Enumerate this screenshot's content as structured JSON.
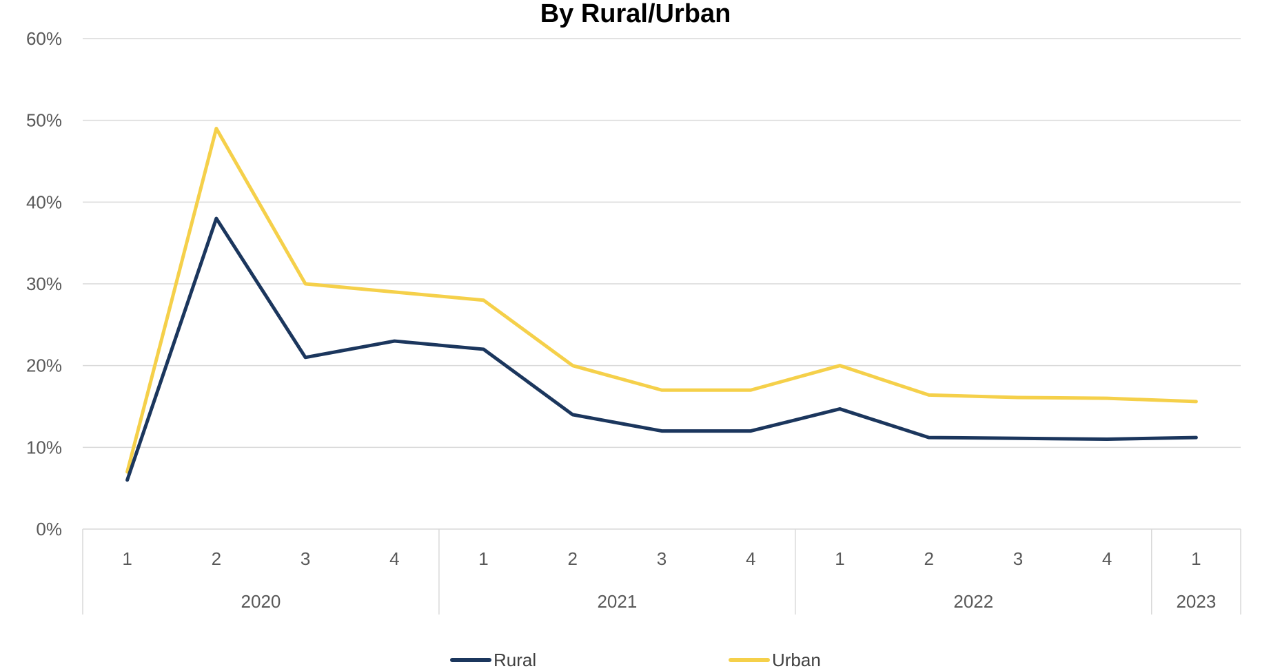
{
  "chart_data": {
    "type": "line",
    "title": "By Rural/Urban",
    "xlabel": "",
    "ylabel": "",
    "ylim": [
      0,
      0.6
    ],
    "yticks": [
      0,
      0.1,
      0.2,
      0.3,
      0.4,
      0.5,
      0.6
    ],
    "ytick_labels": [
      "0%",
      "10%",
      "20%",
      "30%",
      "40%",
      "50%",
      "60%"
    ],
    "categories": [
      "1",
      "2",
      "3",
      "4",
      "1",
      "2",
      "3",
      "4",
      "1",
      "2",
      "3",
      "4",
      "1"
    ],
    "groups": [
      {
        "label": "2020",
        "count": 4
      },
      {
        "label": "2021",
        "count": 4
      },
      {
        "label": "2022",
        "count": 4
      },
      {
        "label": "2023",
        "count": 1
      }
    ],
    "series": [
      {
        "name": "Rural",
        "color": "#1b365d",
        "values": [
          0.06,
          0.38,
          0.21,
          0.23,
          0.22,
          0.14,
          0.12,
          0.12,
          0.147,
          0.112,
          0.111,
          0.11,
          0.112
        ]
      },
      {
        "name": "Urban",
        "color": "#f5d04a",
        "values": [
          0.07,
          0.49,
          0.3,
          0.29,
          0.28,
          0.2,
          0.17,
          0.17,
          0.2,
          0.164,
          0.161,
          0.16,
          0.156
        ]
      }
    ],
    "grid": true,
    "legend_position": "bottom"
  }
}
